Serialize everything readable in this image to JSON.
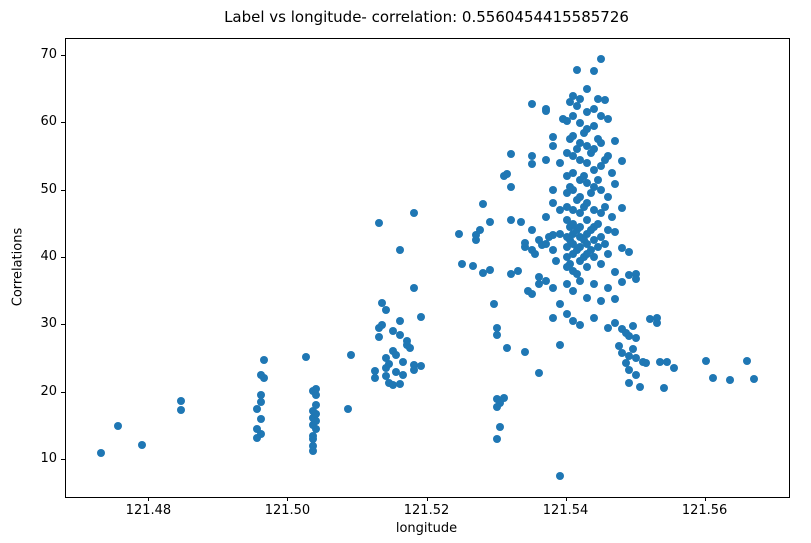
{
  "chart_data": {
    "type": "scatter",
    "title": "Label vs longitude- correlation: 0.5560454415585726",
    "xlabel": "longitude",
    "ylabel": "Correlations",
    "xlim": [
      121.468,
      121.572
    ],
    "ylim": [
      4.5,
      72.5
    ],
    "xticks": [
      121.48,
      121.5,
      121.52,
      121.54,
      121.56
    ],
    "xtick_labels": [
      "121.48",
      "121.50",
      "121.52",
      "121.54",
      "121.56"
    ],
    "yticks": [
      10,
      20,
      30,
      40,
      50,
      60,
      70
    ],
    "ytick_labels": [
      "10",
      "20",
      "30",
      "40",
      "50",
      "60",
      "70"
    ],
    "grid": false,
    "legend": "none",
    "marker_color": "#1f77b4",
    "points": [
      [
        121.473,
        11.1
      ],
      [
        121.4755,
        15.0
      ],
      [
        121.479,
        12.2
      ],
      [
        121.4845,
        18.8
      ],
      [
        121.4845,
        17.4
      ],
      [
        121.4955,
        13.3
      ],
      [
        121.496,
        13.9
      ],
      [
        121.4955,
        14.6
      ],
      [
        121.496,
        16.1
      ],
      [
        121.4955,
        17.6
      ],
      [
        121.496,
        18.6
      ],
      [
        121.496,
        19.6
      ],
      [
        121.4965,
        22.2
      ],
      [
        121.496,
        22.6
      ],
      [
        121.4965,
        24.8
      ],
      [
        121.5025,
        25.3
      ],
      [
        121.5035,
        11.3
      ],
      [
        121.5035,
        12.1
      ],
      [
        121.5035,
        13.1
      ],
      [
        121.5035,
        13.6
      ],
      [
        121.504,
        14.6
      ],
      [
        121.5035,
        15.2
      ],
      [
        121.504,
        15.8
      ],
      [
        121.5035,
        16.2
      ],
      [
        121.504,
        16.8
      ],
      [
        121.5035,
        17.3
      ],
      [
        121.504,
        18.1
      ],
      [
        121.504,
        19.6
      ],
      [
        121.5035,
        20.2
      ],
      [
        121.504,
        20.6
      ],
      [
        121.5085,
        17.6
      ],
      [
        121.509,
        25.6
      ],
      [
        121.5125,
        22.1
      ],
      [
        121.5125,
        23.2
      ],
      [
        121.513,
        45.2
      ],
      [
        121.513,
        29.6
      ],
      [
        121.513,
        28.2
      ],
      [
        121.5135,
        30.1
      ],
      [
        121.5135,
        33.3
      ],
      [
        121.514,
        32.2
      ],
      [
        121.514,
        25.1
      ],
      [
        121.514,
        23.6
      ],
      [
        121.514,
        22.4
      ],
      [
        121.5145,
        21.4
      ],
      [
        121.5145,
        24.2
      ],
      [
        121.515,
        21.1
      ],
      [
        121.515,
        26.2
      ],
      [
        121.515,
        29.2
      ],
      [
        121.5155,
        23.1
      ],
      [
        121.5155,
        25.6
      ],
      [
        121.516,
        41.1
      ],
      [
        121.516,
        30.6
      ],
      [
        121.516,
        28.6
      ],
      [
        121.516,
        21.3
      ],
      [
        121.5165,
        24.6
      ],
      [
        121.5165,
        22.6
      ],
      [
        121.517,
        27.6
      ],
      [
        121.517,
        27.1
      ],
      [
        121.5175,
        26.6
      ],
      [
        121.518,
        46.7
      ],
      [
        121.518,
        35.5
      ],
      [
        121.518,
        24.1
      ],
      [
        121.518,
        23.4
      ],
      [
        121.519,
        31.2
      ],
      [
        121.519,
        23.9
      ],
      [
        121.5245,
        43.5
      ],
      [
        121.525,
        39.1
      ],
      [
        121.5265,
        38.8
      ],
      [
        121.527,
        42.6
      ],
      [
        121.527,
        43.4
      ],
      [
        121.5275,
        44.1
      ],
      [
        121.528,
        48.0
      ],
      [
        121.528,
        37.8
      ],
      [
        121.529,
        45.3
      ],
      [
        121.529,
        38.2
      ],
      [
        121.5295,
        33.1
      ],
      [
        121.53,
        29.6
      ],
      [
        121.53,
        28.6
      ],
      [
        121.53,
        19.1
      ],
      [
        121.5305,
        18.4
      ],
      [
        121.53,
        17.9
      ],
      [
        121.53,
        13.1
      ],
      [
        121.5305,
        14.9
      ],
      [
        121.531,
        19.2
      ],
      [
        121.5315,
        26.6
      ],
      [
        121.531,
        52.1
      ],
      [
        121.5315,
        52.4
      ],
      [
        121.532,
        55.4
      ],
      [
        121.532,
        50.6
      ],
      [
        121.532,
        45.6
      ],
      [
        121.532,
        37.6
      ],
      [
        121.533,
        38.1
      ],
      [
        121.5335,
        45.4
      ],
      [
        121.534,
        26.1
      ],
      [
        121.534,
        41.6
      ],
      [
        121.534,
        42.2
      ],
      [
        121.5345,
        35.1
      ],
      [
        121.535,
        62.9
      ],
      [
        121.535,
        55.1
      ],
      [
        121.535,
        53.9
      ],
      [
        121.535,
        44.1
      ],
      [
        121.535,
        41.1
      ],
      [
        121.535,
        34.6
      ],
      [
        121.5355,
        40.6
      ],
      [
        121.536,
        22.9
      ],
      [
        121.536,
        36.1
      ],
      [
        121.536,
        37.1
      ],
      [
        121.536,
        42.6
      ],
      [
        121.5365,
        41.9
      ],
      [
        121.537,
        62.1
      ],
      [
        121.537,
        61.8
      ],
      [
        121.537,
        54.6
      ],
      [
        121.537,
        46.1
      ],
      [
        121.537,
        42.1
      ],
      [
        121.537,
        36.6
      ],
      [
        121.5375,
        43.1
      ],
      [
        121.538,
        57.9
      ],
      [
        121.538,
        56.6
      ],
      [
        121.538,
        50.1
      ],
      [
        121.538,
        48.1
      ],
      [
        121.538,
        43.4
      ],
      [
        121.538,
        41.2
      ],
      [
        121.538,
        35.6
      ],
      [
        121.538,
        31.1
      ],
      [
        121.5385,
        39.6
      ],
      [
        121.539,
        7.6
      ],
      [
        121.539,
        27.1
      ],
      [
        121.539,
        33.1
      ],
      [
        121.539,
        43.6
      ],
      [
        121.539,
        47.1
      ],
      [
        121.539,
        54.1
      ],
      [
        121.5395,
        60.6
      ],
      [
        121.54,
        60.3
      ],
      [
        121.54,
        55.6
      ],
      [
        121.54,
        52.1
      ],
      [
        121.54,
        49.6
      ],
      [
        121.54,
        47.6
      ],
      [
        121.54,
        45.6
      ],
      [
        121.54,
        43.1
      ],
      [
        121.54,
        41.6
      ],
      [
        121.54,
        40.1
      ],
      [
        121.54,
        38.6
      ],
      [
        121.54,
        36.1
      ],
      [
        121.54,
        31.6
      ],
      [
        121.5405,
        63.1
      ],
      [
        121.5405,
        57.6
      ],
      [
        121.5405,
        50.6
      ],
      [
        121.5405,
        44.6
      ],
      [
        121.5405,
        42.6
      ],
      [
        121.5405,
        39.1
      ],
      [
        121.541,
        64.1
      ],
      [
        121.541,
        61.1
      ],
      [
        121.541,
        58.1
      ],
      [
        121.541,
        55.1
      ],
      [
        121.541,
        52.6
      ],
      [
        121.541,
        50.1
      ],
      [
        121.541,
        47.1
      ],
      [
        121.541,
        45.1
      ],
      [
        121.541,
        43.6
      ],
      [
        121.541,
        42.1
      ],
      [
        121.541,
        40.6
      ],
      [
        121.541,
        38.1
      ],
      [
        121.541,
        35.1
      ],
      [
        121.541,
        30.6
      ],
      [
        121.5415,
        67.9
      ],
      [
        121.5415,
        62.6
      ],
      [
        121.5415,
        56.1
      ],
      [
        121.5415,
        48.6
      ],
      [
        121.5415,
        44.1
      ],
      [
        121.5415,
        41.1
      ],
      [
        121.5415,
        37.6
      ],
      [
        121.542,
        63.6
      ],
      [
        121.542,
        60.1
      ],
      [
        121.542,
        57.1
      ],
      [
        121.542,
        54.6
      ],
      [
        121.542,
        51.6
      ],
      [
        121.542,
        49.1
      ],
      [
        121.542,
        46.6
      ],
      [
        121.542,
        44.6
      ],
      [
        121.542,
        43.1
      ],
      [
        121.542,
        41.6
      ],
      [
        121.542,
        39.6
      ],
      [
        121.542,
        36.6
      ],
      [
        121.542,
        30.1
      ],
      [
        121.5425,
        58.6
      ],
      [
        121.5425,
        52.1
      ],
      [
        121.5425,
        47.6
      ],
      [
        121.5425,
        42.6
      ],
      [
        121.5425,
        40.1
      ],
      [
        121.543,
        65.1
      ],
      [
        121.543,
        61.6
      ],
      [
        121.543,
        59.1
      ],
      [
        121.543,
        56.6
      ],
      [
        121.543,
        54.1
      ],
      [
        121.543,
        51.1
      ],
      [
        121.543,
        48.1
      ],
      [
        121.543,
        45.6
      ],
      [
        121.543,
        43.6
      ],
      [
        121.543,
        42.1
      ],
      [
        121.543,
        40.6
      ],
      [
        121.543,
        38.6
      ],
      [
        121.543,
        34.1
      ],
      [
        121.5435,
        55.6
      ],
      [
        121.5435,
        49.6
      ],
      [
        121.5435,
        44.1
      ],
      [
        121.5435,
        41.1
      ],
      [
        121.544,
        67.8
      ],
      [
        121.544,
        62.1
      ],
      [
        121.544,
        59.6
      ],
      [
        121.544,
        56.1
      ],
      [
        121.544,
        53.1
      ],
      [
        121.544,
        50.6
      ],
      [
        121.544,
        47.1
      ],
      [
        121.544,
        44.6
      ],
      [
        121.544,
        42.6
      ],
      [
        121.544,
        40.1
      ],
      [
        121.544,
        36.1
      ],
      [
        121.544,
        31.1
      ],
      [
        121.5445,
        63.6
      ],
      [
        121.5445,
        57.6
      ],
      [
        121.5445,
        51.6
      ],
      [
        121.5445,
        45.1
      ],
      [
        121.5445,
        41.6
      ],
      [
        121.545,
        69.5
      ],
      [
        121.545,
        61.1
      ],
      [
        121.545,
        57.1
      ],
      [
        121.545,
        53.6
      ],
      [
        121.545,
        50.1
      ],
      [
        121.545,
        46.6
      ],
      [
        121.545,
        43.1
      ],
      [
        121.545,
        39.1
      ],
      [
        121.545,
        33.6
      ],
      [
        121.5455,
        63.4
      ],
      [
        121.5455,
        54.6
      ],
      [
        121.5455,
        47.6
      ],
      [
        121.5455,
        42.1
      ],
      [
        121.546,
        60.6
      ],
      [
        121.546,
        55.1
      ],
      [
        121.546,
        49.1
      ],
      [
        121.546,
        44.1
      ],
      [
        121.546,
        40.6
      ],
      [
        121.546,
        35.6
      ],
      [
        121.546,
        29.6
      ],
      [
        121.5465,
        52.6
      ],
      [
        121.5465,
        46.1
      ],
      [
        121.547,
        57.4
      ],
      [
        121.547,
        50.9
      ],
      [
        121.547,
        43.9
      ],
      [
        121.547,
        37.9
      ],
      [
        121.547,
        33.9
      ],
      [
        121.547,
        30.4
      ],
      [
        121.5475,
        26.9
      ],
      [
        121.548,
        54.4
      ],
      [
        121.548,
        47.4
      ],
      [
        121.548,
        41.4
      ],
      [
        121.548,
        36.4
      ],
      [
        121.548,
        29.4
      ],
      [
        121.548,
        25.9
      ],
      [
        121.5485,
        24.4
      ],
      [
        121.5485,
        28.9
      ],
      [
        121.549,
        40.9
      ],
      [
        121.549,
        37.4
      ],
      [
        121.549,
        28.4
      ],
      [
        121.549,
        25.4
      ],
      [
        121.549,
        23.4
      ],
      [
        121.549,
        21.4
      ],
      [
        121.5495,
        26.4
      ],
      [
        121.5495,
        29.9
      ],
      [
        121.55,
        37.6
      ],
      [
        121.55,
        36.9
      ],
      [
        121.55,
        28.1
      ],
      [
        121.55,
        25.1
      ],
      [
        121.55,
        22.6
      ],
      [
        121.5505,
        20.9
      ],
      [
        121.551,
        24.6
      ],
      [
        121.5515,
        24.4
      ],
      [
        121.552,
        30.9
      ],
      [
        121.553,
        31.1
      ],
      [
        121.553,
        30.4
      ],
      [
        121.5535,
        24.6
      ],
      [
        121.554,
        20.7
      ],
      [
        121.5545,
        24.6
      ],
      [
        121.5555,
        23.6
      ],
      [
        121.56,
        24.7
      ],
      [
        121.561,
        22.2
      ],
      [
        121.5635,
        21.9
      ],
      [
        121.566,
        24.7
      ],
      [
        121.567,
        22.0
      ]
    ]
  }
}
